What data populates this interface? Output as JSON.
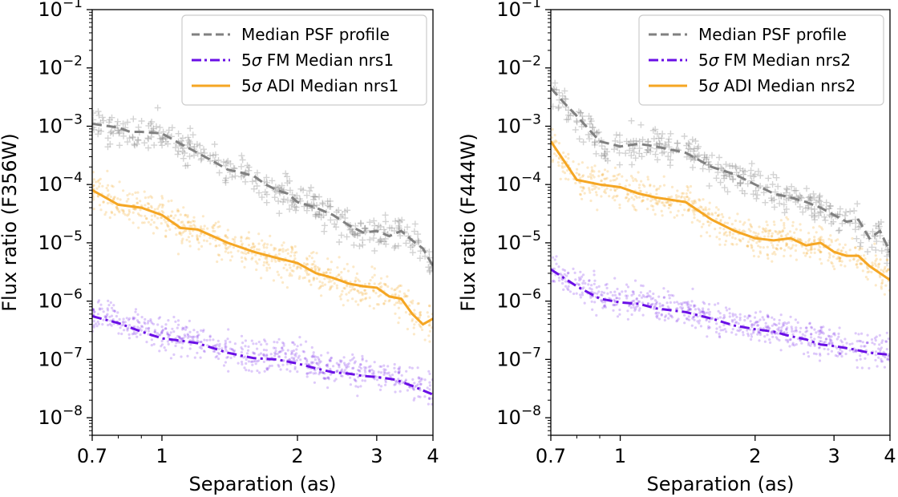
{
  "chart_data": [
    {
      "type": "line",
      "xlabel": "Separation (as)",
      "ylabel": "Flux ratio (F356W)",
      "xscale": "log",
      "yscale": "log",
      "xlim": [
        0.7,
        4
      ],
      "ylim": [
        5e-09,
        0.1
      ],
      "xticks": [
        {
          "value": 0.7,
          "label": "0.7"
        },
        {
          "value": 1,
          "label": "1"
        },
        {
          "value": 2,
          "label": "2"
        },
        {
          "value": 3,
          "label": "3"
        },
        {
          "value": 4,
          "label": "4"
        }
      ],
      "yticks": [
        {
          "value": 1e-08,
          "base": "10",
          "exp": "−8"
        },
        {
          "value": 1e-07,
          "base": "10",
          "exp": "−7"
        },
        {
          "value": 1e-06,
          "base": "10",
          "exp": "−6"
        },
        {
          "value": 1e-05,
          "base": "10",
          "exp": "−5"
        },
        {
          "value": 0.0001,
          "base": "10",
          "exp": "−4"
        },
        {
          "value": 0.001,
          "base": "10",
          "exp": "−3"
        },
        {
          "value": 0.01,
          "base": "10",
          "exp": "−2"
        },
        {
          "value": 0.1,
          "base": "10",
          "exp": "−1"
        }
      ],
      "legend_position": "top-right",
      "series": [
        {
          "name": "Median PSF profile",
          "color": "#808080",
          "style": "dashed",
          "x": [
            0.7,
            0.8,
            0.85,
            0.9,
            1.0,
            1.1,
            1.2,
            1.3,
            1.4,
            1.5,
            1.6,
            1.7,
            1.8,
            1.9,
            2.0,
            2.2,
            2.4,
            2.6,
            2.8,
            3.0,
            3.2,
            3.4,
            3.6,
            3.8,
            4.0
          ],
          "y": [
            0.0011,
            0.00095,
            0.0008,
            0.0008,
            0.00075,
            0.0005,
            0.00035,
            0.00025,
            0.00018,
            0.00016,
            0.00014,
            0.0001,
            8e-05,
            7e-05,
            5e-05,
            4e-05,
            3e-05,
            2e-05,
            1.5e-05,
            1.6e-05,
            1.3e-05,
            1.6e-05,
            1.1e-05,
            8e-06,
            4e-06
          ]
        },
        {
          "name": "5σ FM Median nrs1",
          "color": "#6a0fe6",
          "style": "dashdot",
          "x": [
            0.7,
            0.8,
            0.9,
            1.0,
            1.1,
            1.2,
            1.4,
            1.6,
            1.8,
            2.0,
            2.2,
            2.4,
            2.6,
            2.8,
            3.0,
            3.3,
            3.6,
            4.0
          ],
          "y": [
            5.5e-07,
            4.2e-07,
            3e-07,
            2.3e-07,
            2.1e-07,
            1.9e-07,
            1.3e-07,
            1.05e-07,
            1e-07,
            8.5e-08,
            7e-08,
            6e-08,
            5.7e-08,
            5.2e-08,
            5e-08,
            4.5e-08,
            3.5e-08,
            2.5e-08
          ]
        },
        {
          "name": "5σ ADI Median nrs1",
          "color": "#f5a623",
          "style": "solid",
          "x": [
            0.7,
            0.8,
            0.9,
            1.0,
            1.1,
            1.2,
            1.4,
            1.6,
            1.8,
            2.0,
            2.2,
            2.4,
            2.6,
            2.8,
            3.0,
            3.2,
            3.4,
            3.6,
            3.8,
            4.0
          ],
          "y": [
            8e-05,
            4.5e-05,
            4e-05,
            3e-05,
            1.8e-05,
            1.7e-05,
            1e-05,
            7e-06,
            5.5e-06,
            4.5e-06,
            3e-06,
            2.5e-06,
            2e-06,
            1.8e-06,
            1.7e-06,
            1.2e-06,
            1.1e-06,
            6e-07,
            4e-07,
            5e-07
          ]
        }
      ]
    },
    {
      "type": "line",
      "xlabel": "Separation (as)",
      "ylabel": "Flux ratio (F444W)",
      "xscale": "log",
      "yscale": "log",
      "xlim": [
        0.7,
        4
      ],
      "ylim": [
        5e-09,
        0.1
      ],
      "xticks": [
        {
          "value": 0.7,
          "label": "0.7"
        },
        {
          "value": 1,
          "label": "1"
        },
        {
          "value": 2,
          "label": "2"
        },
        {
          "value": 3,
          "label": "3"
        },
        {
          "value": 4,
          "label": "4"
        }
      ],
      "yticks": [
        {
          "value": 1e-08,
          "base": "10",
          "exp": "−8"
        },
        {
          "value": 1e-07,
          "base": "10",
          "exp": "−7"
        },
        {
          "value": 1e-06,
          "base": "10",
          "exp": "−6"
        },
        {
          "value": 1e-05,
          "base": "10",
          "exp": "−5"
        },
        {
          "value": 0.0001,
          "base": "10",
          "exp": "−4"
        },
        {
          "value": 0.001,
          "base": "10",
          "exp": "−3"
        },
        {
          "value": 0.01,
          "base": "10",
          "exp": "−2"
        },
        {
          "value": 0.1,
          "base": "10",
          "exp": "−1"
        }
      ],
      "legend_position": "top-right",
      "series": [
        {
          "name": "Median PSF profile",
          "color": "#808080",
          "style": "dashed",
          "x": [
            0.7,
            0.75,
            0.8,
            0.9,
            1.0,
            1.1,
            1.2,
            1.4,
            1.6,
            1.8,
            2.0,
            2.2,
            2.4,
            2.6,
            2.8,
            3.0,
            3.2,
            3.4,
            3.6,
            3.8,
            4.0
          ],
          "y": [
            0.0045,
            0.0025,
            0.0015,
            0.00055,
            0.00045,
            0.0005,
            0.00045,
            0.00035,
            0.0002,
            0.00015,
            0.0001,
            7e-05,
            6e-05,
            5e-05,
            4e-05,
            3e-05,
            2.3e-05,
            2.5e-05,
            1.2e-05,
            1.6e-05,
            7e-06
          ]
        },
        {
          "name": "5σ FM Median nrs2",
          "color": "#6a0fe6",
          "style": "dashdot",
          "x": [
            0.7,
            0.8,
            0.9,
            1.0,
            1.1,
            1.2,
            1.4,
            1.6,
            1.8,
            2.0,
            2.2,
            2.4,
            2.6,
            2.8,
            3.0,
            3.3,
            3.6,
            4.0
          ],
          "y": [
            3.5e-06,
            1.8e-06,
            1.1e-06,
            9.5e-07,
            9e-07,
            7.5e-07,
            6.5e-07,
            5e-07,
            3.8e-07,
            3.3e-07,
            3e-07,
            2.5e-07,
            2.2e-07,
            1.8e-07,
            1.7e-07,
            1.5e-07,
            1.3e-07,
            1.2e-07
          ]
        },
        {
          "name": "5σ ADI Median nrs2",
          "color": "#f5a623",
          "style": "solid",
          "x": [
            0.7,
            0.8,
            0.9,
            1.0,
            1.1,
            1.2,
            1.4,
            1.6,
            1.8,
            2.0,
            2.2,
            2.4,
            2.6,
            2.8,
            3.0,
            3.2,
            3.4,
            3.6,
            3.8,
            4.0
          ],
          "y": [
            0.00055,
            0.00012,
            0.0001,
            9e-05,
            7e-05,
            6e-05,
            5e-05,
            2.5e-05,
            1.6e-05,
            1.2e-05,
            1.1e-05,
            1.2e-05,
            9e-06,
            1e-05,
            7e-06,
            6e-06,
            6e-06,
            4e-06,
            3e-06,
            2.3e-06
          ]
        }
      ]
    }
  ]
}
